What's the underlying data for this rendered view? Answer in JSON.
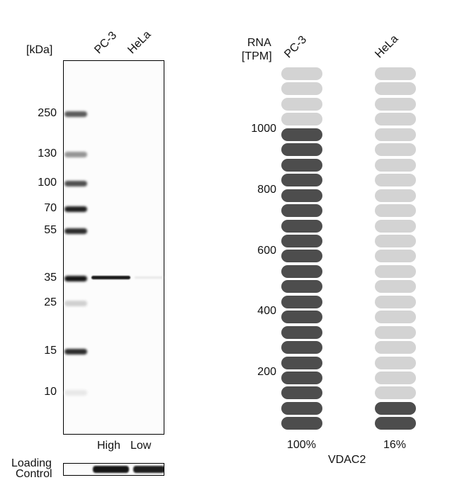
{
  "western_blot": {
    "unit_label": "[kDa]",
    "lanes": [
      "PC-3",
      "HeLa"
    ],
    "markers": [
      {
        "label": "250",
        "y": 160,
        "intensity": 0.7
      },
      {
        "label": "130",
        "y": 217,
        "intensity": 0.45
      },
      {
        "label": "100",
        "y": 258,
        "intensity": 0.75
      },
      {
        "label": "70",
        "y": 294,
        "intensity": 0.95
      },
      {
        "label": "55",
        "y": 325,
        "intensity": 0.9
      },
      {
        "label": "35",
        "y": 392,
        "intensity": 1.0
      },
      {
        "label": "25",
        "y": 427,
        "intensity": 0.2
      },
      {
        "label": "15",
        "y": 495,
        "intensity": 0.9
      },
      {
        "label": "10",
        "y": 553,
        "intensity": 0.1
      }
    ],
    "level_labels": [
      "High",
      "Low"
    ],
    "loading_control_label": [
      "Loading",
      "Control"
    ]
  },
  "rna": {
    "axis_title": [
      "RNA",
      "[TPM]"
    ],
    "ticks": [
      {
        "label": "1000",
        "y": 182
      },
      {
        "label": "800",
        "y": 268
      },
      {
        "label": "600",
        "y": 354
      },
      {
        "label": "400",
        "y": 439
      },
      {
        "label": "200",
        "y": 525
      }
    ],
    "gene": "VDAC2",
    "colors": {
      "filled": "#4d4d4d",
      "empty": "#d3d3d3"
    },
    "total_pills": 24
  },
  "chart_data": {
    "type": "bar",
    "title": "VDAC2",
    "ylabel": "RNA [TPM]",
    "categories": [
      "PC-3",
      "HeLa"
    ],
    "values_pills_filled": [
      20,
      2
    ],
    "total_pills": 24,
    "values_tpm_approx": [
      1000,
      100
    ],
    "percent_labels": [
      "100%",
      "16%"
    ],
    "y_ticks": [
      200,
      400,
      600,
      800,
      1000
    ],
    "ylim": [
      0,
      1200
    ]
  }
}
